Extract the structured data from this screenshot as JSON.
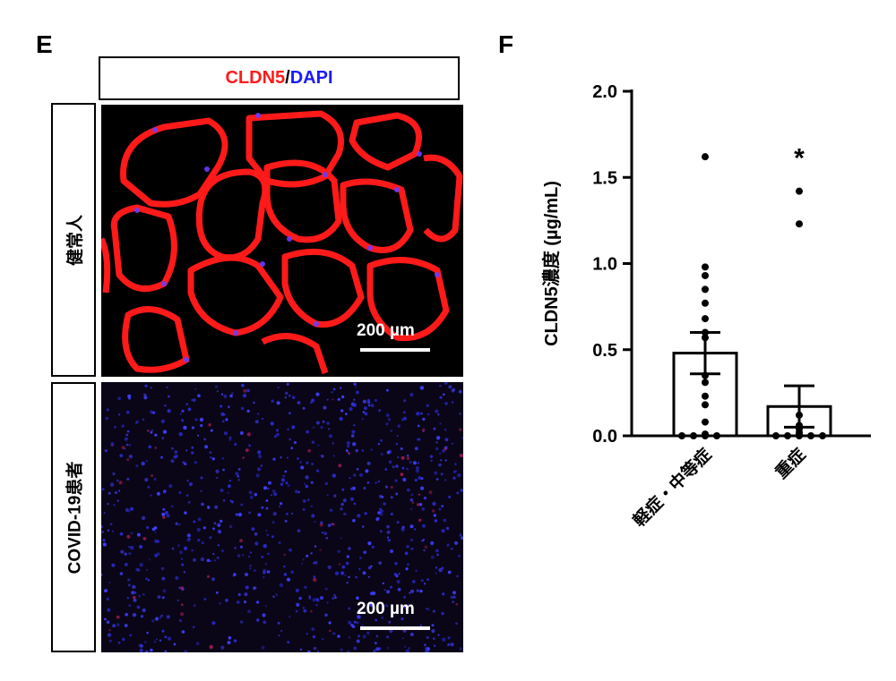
{
  "panels": {
    "e": {
      "letter": "E"
    },
    "f": {
      "letter": "F"
    }
  },
  "microscopy": {
    "stain_red": "CLDN5",
    "stain_sep": "/",
    "stain_blue": "DAPI",
    "row_healthy": "健常人",
    "row_covid": "COVID-19患者",
    "scalebar_healthy": "200 µm",
    "scalebar_covid": "200 µm",
    "colors": {
      "red": "#ff1a1a",
      "blue": "#1a1aff"
    }
  },
  "chart_data": {
    "type": "bar",
    "ylabel": "CLDN5濃度 (µg/mL)",
    "ylim": [
      0,
      2.0
    ],
    "yticks": [
      "0.0",
      "0.5",
      "1.0",
      "1.5",
      "2.0"
    ],
    "categories": [
      "軽症・中等症",
      "重症"
    ],
    "values": [
      0.48,
      0.17
    ],
    "errors": [
      0.12,
      0.12
    ],
    "points": [
      [
        1.62,
        0.98,
        0.93,
        0.85,
        0.77,
        0.68,
        0.6,
        0.57,
        0.35,
        0.31,
        0.23,
        0.18,
        0.08,
        0.01,
        0.0,
        0.0,
        0.0,
        0.0
      ],
      [
        1.42,
        1.23,
        0.12,
        0.06,
        0.04,
        0.02,
        0.01,
        0.0,
        0.0,
        0.0,
        0.0,
        0.0
      ]
    ],
    "annotation": "*",
    "grid": false
  }
}
